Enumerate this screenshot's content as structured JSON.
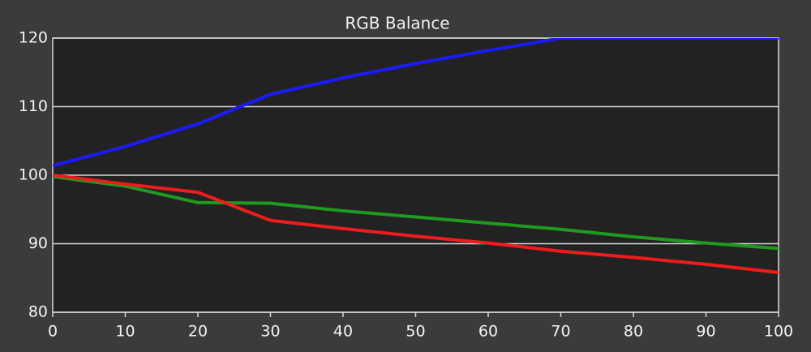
{
  "chart_data": {
    "type": "line",
    "title": "RGB Balance",
    "x": [
      0,
      10,
      20,
      30,
      40,
      50,
      60,
      70,
      80,
      90,
      100
    ],
    "series": [
      {
        "color": "#1a1aff",
        "values": [
          101.4,
          104.2,
          107.5,
          111.8,
          114.2,
          116.3,
          118.2,
          120,
          120,
          120,
          120
        ]
      },
      {
        "color": "#1f9a1f",
        "values": [
          99.8,
          98.4,
          96,
          95.9,
          94.8,
          93.9,
          93.0,
          92.1,
          91.0,
          90.1,
          89.3
        ]
      },
      {
        "color": "#ee1c1c",
        "values": [
          100,
          98.7,
          97.5,
          93.4,
          92.2,
          91.1,
          90.1,
          88.9,
          88.0,
          87.0,
          85.8
        ]
      }
    ],
    "xlim": [
      0,
      100
    ],
    "xticks": [
      0,
      10,
      20,
      30,
      40,
      50,
      60,
      70,
      80,
      90,
      100
    ],
    "ylim": [
      80,
      120
    ],
    "yticks": [
      80,
      90,
      100,
      110,
      120
    ],
    "grid": true
  }
}
